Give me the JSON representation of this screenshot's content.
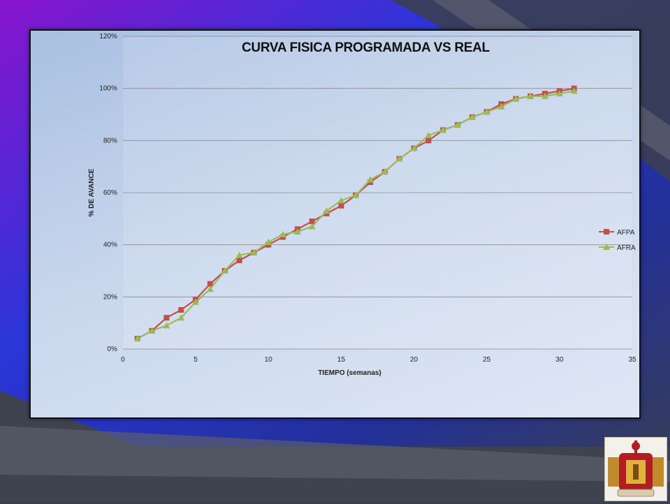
{
  "colors": {
    "afpa": "#c0504d",
    "afra": "#9bbb59",
    "grid": "#8c8c8c",
    "accent_purple": "#7a10c8",
    "accent_blue": "#2033d8"
  },
  "chart_data": {
    "type": "line",
    "title": "CURVA FISICA PROGRAMADA VS REAL",
    "xlabel": "TIEMPO (semanas)",
    "ylabel": "% DE AVANCE",
    "xlim": [
      0,
      35
    ],
    "ylim": [
      0,
      120
    ],
    "x_ticks": [
      "0",
      "5",
      "10",
      "15",
      "20",
      "25",
      "30",
      "35"
    ],
    "y_ticks": [
      "0%",
      "20%",
      "40%",
      "60%",
      "80%",
      "100%",
      "120%"
    ],
    "grid": "horizontal",
    "legend_position": "right",
    "x": [
      1,
      2,
      3,
      4,
      5,
      6,
      7,
      8,
      9,
      10,
      11,
      12,
      13,
      14,
      15,
      16,
      17,
      18,
      19,
      20,
      21,
      22,
      23,
      24,
      25,
      26,
      27,
      28,
      29,
      30,
      31
    ],
    "series": [
      {
        "name": "AFPA",
        "marker": "square",
        "values": [
          4,
          7,
          12,
          15,
          19,
          25,
          30,
          34,
          37,
          40,
          43,
          46,
          49,
          52,
          55,
          59,
          64,
          68,
          73,
          77,
          80,
          84,
          86,
          89,
          91,
          94,
          96,
          97,
          98,
          99,
          100
        ]
      },
      {
        "name": "AFRA",
        "marker": "triangle",
        "values": [
          4,
          7,
          9,
          12,
          18,
          23,
          30,
          36,
          37,
          41,
          44,
          45,
          47,
          53,
          57,
          59,
          65,
          68,
          73,
          77,
          82,
          84,
          86,
          89,
          91,
          93,
          96,
          97,
          97,
          98,
          99
        ]
      }
    ]
  }
}
